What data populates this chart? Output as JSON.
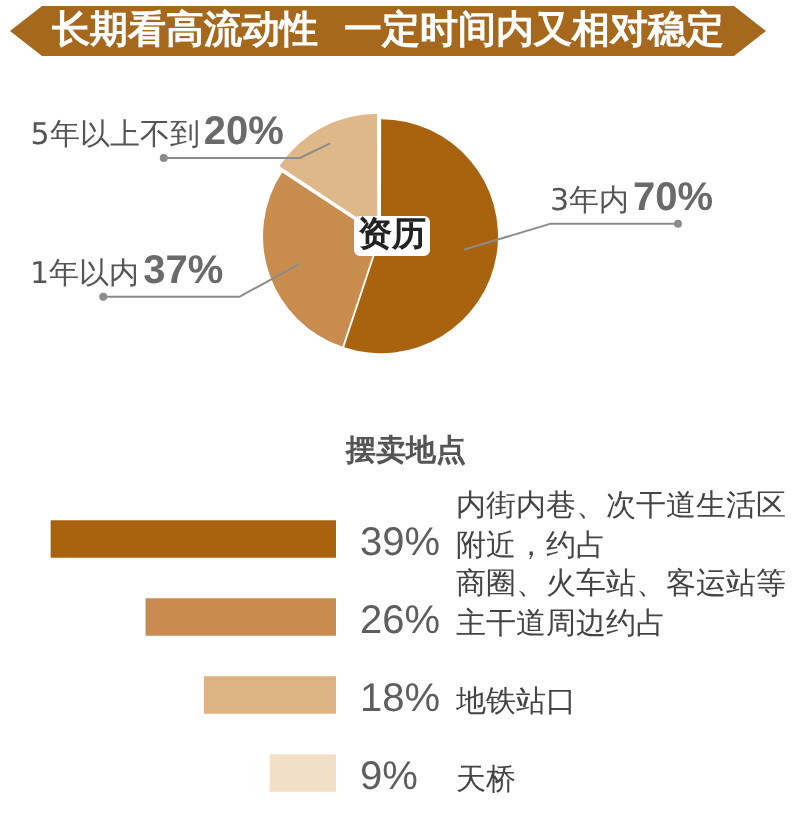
{
  "chart_data": [
    {
      "type": "pie",
      "title": "长期看高流动性 一定时间内又相对稳定",
      "annotations": [
        "资历"
      ],
      "categories": [
        "3年内",
        "1年以内",
        "5年以上不到"
      ],
      "values": [
        70,
        37,
        20
      ],
      "value_labels": [
        "70%",
        "37%",
        "20%"
      ],
      "colors": [
        "#a9620e",
        "#c98c4f",
        "#dfb88a"
      ]
    },
    {
      "type": "bar",
      "orientation": "horizontal",
      "title": "摆卖地点",
      "categories": [
        "内街内巷、次干道生活区附近，约占",
        "商圈、火车站、客运站等主干道周边约占",
        "地铁站口",
        "天桥"
      ],
      "values": [
        39,
        26,
        18,
        9
      ],
      "value_labels": [
        "39%",
        "26%",
        "18%",
        "9%"
      ],
      "colors": [
        "#a9620e",
        "#c98b4f",
        "#ddb383",
        "#f2dfc8"
      ],
      "xlim": [
        40,
        0
      ]
    }
  ]
}
